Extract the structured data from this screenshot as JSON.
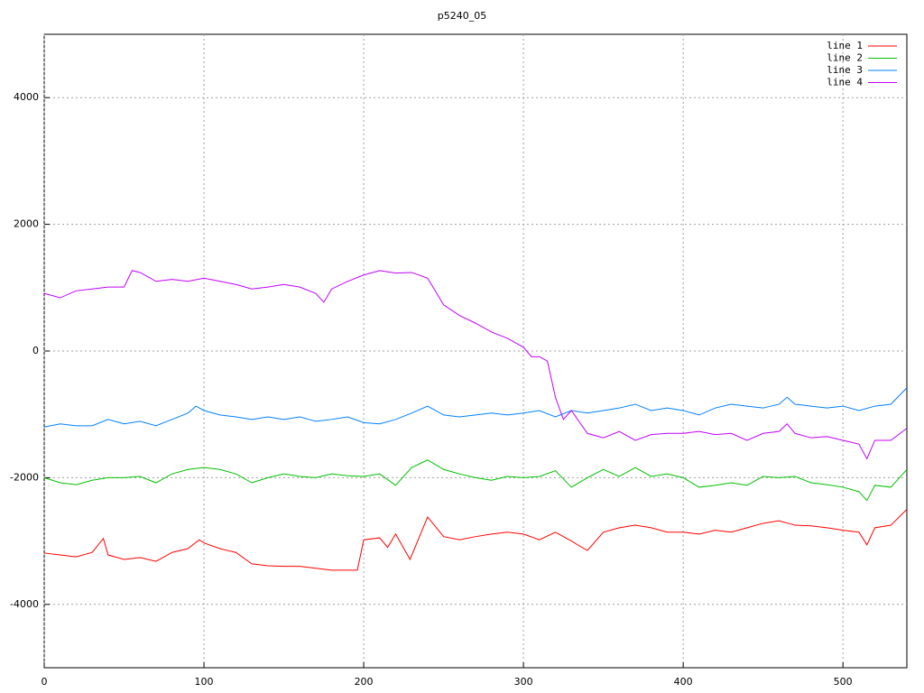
{
  "chart_data": {
    "type": "line",
    "title": "p5240_05",
    "xlim": [
      0,
      540
    ],
    "ylim": [
      -5000,
      5000
    ],
    "xticks": [
      0,
      100,
      200,
      300,
      400,
      500
    ],
    "yticks": [
      -4000,
      -2000,
      0,
      2000,
      4000
    ],
    "grid": true,
    "legend": "top-right",
    "series": [
      {
        "name": "line 1",
        "color": "#ff0000",
        "x": [
          0,
          10,
          20,
          30,
          37,
          40,
          50,
          60,
          70,
          80,
          90,
          97,
          100,
          110,
          120,
          130,
          140,
          150,
          160,
          170,
          180,
          190,
          196,
          200,
          210,
          215,
          220,
          229,
          240,
          250,
          260,
          270,
          280,
          290,
          300,
          310,
          320,
          330,
          340,
          350,
          360,
          370,
          380,
          390,
          400,
          410,
          420,
          430,
          440,
          450,
          460,
          470,
          480,
          490,
          500,
          510,
          515,
          520,
          530,
          540
        ],
        "values": [
          -3190,
          -3220,
          -3250,
          -3180,
          -2960,
          -3220,
          -3290,
          -3260,
          -3320,
          -3180,
          -3120,
          -2980,
          -3030,
          -3120,
          -3180,
          -3360,
          -3390,
          -3400,
          -3400,
          -3430,
          -3460,
          -3460,
          -3460,
          -2980,
          -2950,
          -3100,
          -2890,
          -3290,
          -2620,
          -2930,
          -2980,
          -2930,
          -2890,
          -2860,
          -2890,
          -2980,
          -2860,
          -3000,
          -3150,
          -2860,
          -2790,
          -2750,
          -2790,
          -2860,
          -2860,
          -2890,
          -2830,
          -2860,
          -2790,
          -2720,
          -2680,
          -2750,
          -2760,
          -2790,
          -2830,
          -2860,
          -3060,
          -2790,
          -2750,
          -2500
        ]
      },
      {
        "name": "line 2",
        "color": "#00c000",
        "x": [
          0,
          10,
          20,
          30,
          40,
          50,
          60,
          70,
          80,
          90,
          100,
          110,
          120,
          130,
          140,
          150,
          160,
          170,
          180,
          190,
          200,
          210,
          220,
          230,
          240,
          250,
          260,
          270,
          280,
          290,
          300,
          310,
          320,
          330,
          340,
          350,
          360,
          370,
          380,
          390,
          400,
          410,
          420,
          430,
          440,
          450,
          460,
          470,
          480,
          490,
          500,
          510,
          515,
          520,
          530,
          540
        ],
        "values": [
          -2000,
          -2080,
          -2110,
          -2040,
          -2000,
          -2000,
          -1980,
          -2080,
          -1940,
          -1870,
          -1840,
          -1870,
          -1940,
          -2080,
          -2000,
          -1940,
          -1980,
          -2000,
          -1940,
          -1970,
          -1980,
          -1940,
          -2120,
          -1840,
          -1720,
          -1870,
          -1940,
          -2000,
          -2040,
          -1980,
          -2000,
          -1980,
          -1890,
          -2150,
          -2000,
          -1870,
          -1980,
          -1840,
          -1980,
          -1940,
          -2000,
          -2150,
          -2120,
          -2080,
          -2120,
          -1980,
          -2000,
          -1980,
          -2080,
          -2110,
          -2150,
          -2220,
          -2360,
          -2120,
          -2150,
          -1870
        ]
      },
      {
        "name": "line 3",
        "color": "#0080ff",
        "x": [
          0,
          10,
          20,
          30,
          40,
          50,
          60,
          70,
          80,
          90,
          95,
          100,
          110,
          120,
          130,
          140,
          150,
          160,
          170,
          180,
          190,
          200,
          210,
          220,
          230,
          240,
          250,
          260,
          270,
          280,
          290,
          300,
          310,
          320,
          330,
          340,
          350,
          360,
          370,
          380,
          390,
          400,
          410,
          420,
          430,
          440,
          450,
          460,
          465,
          470,
          480,
          490,
          500,
          510,
          520,
          530,
          540
        ],
        "values": [
          -1200,
          -1150,
          -1180,
          -1180,
          -1080,
          -1150,
          -1110,
          -1180,
          -1080,
          -980,
          -870,
          -940,
          -1010,
          -1040,
          -1080,
          -1040,
          -1080,
          -1040,
          -1110,
          -1080,
          -1040,
          -1130,
          -1150,
          -1080,
          -980,
          -870,
          -1010,
          -1040,
          -1010,
          -980,
          -1010,
          -980,
          -940,
          -1040,
          -940,
          -980,
          -940,
          -900,
          -840,
          -940,
          -900,
          -940,
          -1010,
          -900,
          -840,
          -870,
          -900,
          -840,
          -730,
          -840,
          -870,
          -900,
          -870,
          -940,
          -870,
          -840,
          -580
        ]
      },
      {
        "name": "line 4",
        "color": "#c000ff",
        "x": [
          0,
          10,
          20,
          30,
          40,
          50,
          55,
          60,
          70,
          80,
          90,
          100,
          110,
          120,
          130,
          140,
          150,
          160,
          170,
          175,
          180,
          190,
          200,
          210,
          220,
          230,
          240,
          250,
          260,
          270,
          280,
          290,
          300,
          305,
          310,
          315,
          320,
          325,
          330,
          340,
          350,
          360,
          370,
          380,
          390,
          400,
          410,
          420,
          430,
          440,
          450,
          460,
          465,
          470,
          480,
          490,
          500,
          510,
          515,
          520,
          530,
          540
        ],
        "values": [
          910,
          840,
          950,
          980,
          1010,
          1010,
          1270,
          1240,
          1100,
          1130,
          1100,
          1150,
          1100,
          1050,
          980,
          1010,
          1050,
          1010,
          910,
          770,
          980,
          1100,
          1200,
          1270,
          1230,
          1240,
          1150,
          730,
          560,
          440,
          300,
          200,
          60,
          -90,
          -90,
          -160,
          -730,
          -1080,
          -940,
          -1300,
          -1370,
          -1270,
          -1410,
          -1320,
          -1300,
          -1300,
          -1270,
          -1320,
          -1300,
          -1410,
          -1300,
          -1270,
          -1150,
          -1300,
          -1370,
          -1350,
          -1410,
          -1470,
          -1700,
          -1410,
          -1410,
          -1220
        ]
      }
    ]
  }
}
